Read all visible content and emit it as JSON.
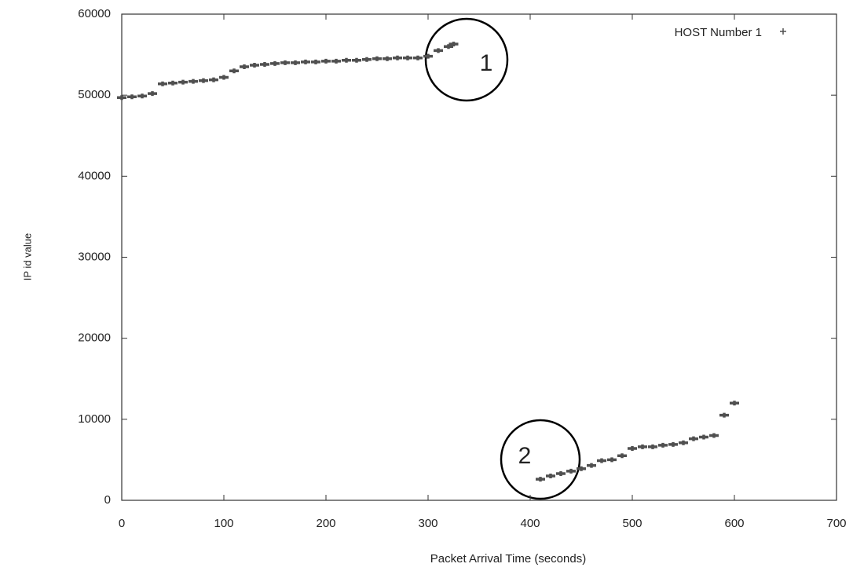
{
  "chart_data": {
    "type": "scatter",
    "xlabel": "Packet  Arrival Time (seconds)",
    "ylabel": "IP id value",
    "xlim": [
      0,
      700
    ],
    "xticks": [
      0,
      100,
      200,
      300,
      400,
      500,
      600,
      700
    ],
    "ylim": [
      0,
      60000
    ],
    "yticks": [
      0,
      10000,
      20000,
      30000,
      40000,
      50000,
      60000
    ],
    "legend": "top-right",
    "annotations": [
      "1",
      "2"
    ],
    "series": [
      {
        "name": "HOST Number 1",
        "color": "#505050",
        "x": [
          0,
          10,
          20,
          30,
          40,
          50,
          60,
          70,
          80,
          90,
          100,
          110,
          120,
          130,
          140,
          150,
          160,
          170,
          180,
          190,
          200,
          210,
          220,
          230,
          240,
          250,
          260,
          270,
          280,
          290,
          300,
          310,
          320,
          325,
          410,
          420,
          430,
          440,
          450,
          460,
          470,
          480,
          490,
          500,
          510,
          520,
          530,
          540,
          550,
          560,
          570,
          580,
          590,
          600
        ],
        "values": [
          49700,
          49800,
          49900,
          50200,
          51400,
          51500,
          51600,
          51700,
          51800,
          51900,
          52200,
          53000,
          53500,
          53700,
          53800,
          53900,
          54000,
          54000,
          54100,
          54100,
          54200,
          54200,
          54300,
          54300,
          54400,
          54500,
          54500,
          54600,
          54600,
          54600,
          54800,
          55500,
          56000,
          56300,
          2600,
          3000,
          3300,
          3600,
          3900,
          4300,
          4900,
          5000,
          5500,
          6400,
          6600,
          6600,
          6800,
          6900,
          7100,
          7600,
          7800,
          8000,
          10500,
          12000
        ]
      }
    ]
  }
}
